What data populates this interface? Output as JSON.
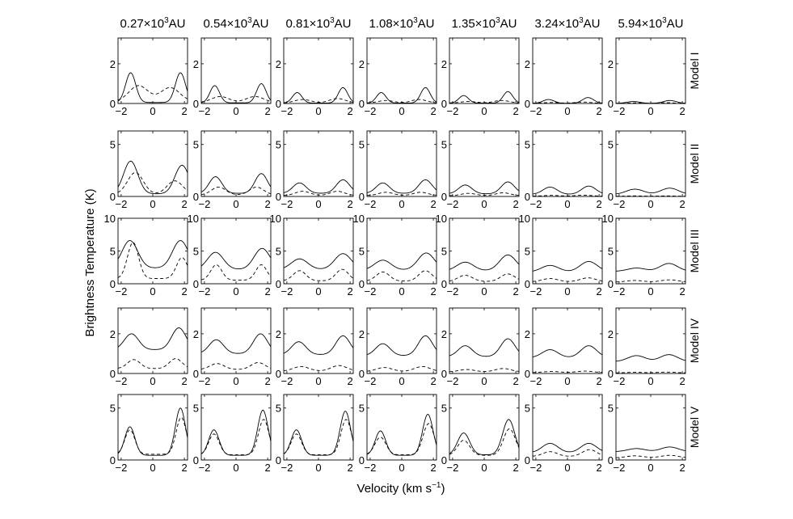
{
  "figure": {
    "ylabel": "Brightness Temperature (K)",
    "xlabel_main": "Velocity (km s",
    "xlabel_sup": "−1",
    "xlabel_close": ")",
    "line_color": "#000000"
  },
  "columns": [
    {
      "id": "c1",
      "base": "0.27×10",
      "exp": "3",
      "unit": "AU"
    },
    {
      "id": "c2",
      "base": "0.54×10",
      "exp": "3",
      "unit": "AU"
    },
    {
      "id": "c3",
      "base": "0.81×10",
      "exp": "3",
      "unit": "AU"
    },
    {
      "id": "c4",
      "base": "1.08×10",
      "exp": "3",
      "unit": "AU"
    },
    {
      "id": "c5",
      "base": "1.35×10",
      "exp": "3",
      "unit": "AU"
    },
    {
      "id": "c6",
      "base": "3.24×10",
      "exp": "3",
      "unit": "AU"
    },
    {
      "id": "c7",
      "base": "5.94×10",
      "exp": "3",
      "unit": "AU"
    }
  ],
  "rows": [
    {
      "model": "Model I",
      "ylim": [
        0,
        3.3
      ],
      "yticks": [
        0,
        2
      ]
    },
    {
      "model": "Model II",
      "ylim": [
        0,
        6.3
      ],
      "yticks": [
        0,
        5
      ]
    },
    {
      "model": "Model III",
      "ylim": [
        0,
        10
      ],
      "yticks": [
        0,
        5,
        10
      ]
    },
    {
      "model": "Model IV",
      "ylim": [
        0,
        3.3
      ],
      "yticks": [
        0,
        2
      ]
    },
    {
      "model": "Model V",
      "ylim": [
        0,
        6.3
      ],
      "yticks": [
        0,
        5
      ]
    }
  ],
  "chart_data": {
    "type": "line",
    "xlim": [
      -2.2,
      2.2
    ],
    "xticks": [
      -2,
      0,
      2
    ],
    "series_styles": [
      {
        "key": "solid",
        "dash": "none"
      },
      {
        "key": "dashed",
        "dash": "dashed"
      }
    ],
    "panels": [
      [
        {
          "solid": {
            "v1": -1.4,
            "p1": 1.55,
            "v2": 1.75,
            "p2": 1.55,
            "w": 0.32,
            "c": 0.05
          },
          "dashed": {
            "v1": -0.9,
            "p1": 0.9,
            "v2": 1.1,
            "p2": 0.8,
            "w": 0.6,
            "c": 0.1
          }
        },
        {
          "solid": {
            "v1": -1.35,
            "p1": 0.9,
            "v2": 1.6,
            "p2": 1.0,
            "w": 0.3,
            "c": 0.03
          },
          "dashed": {
            "v1": -1.0,
            "p1": 0.35,
            "v2": 1.2,
            "p2": 0.35,
            "w": 0.55,
            "c": 0.05
          }
        },
        {
          "solid": {
            "v1": -1.35,
            "p1": 0.55,
            "v2": 1.55,
            "p2": 0.8,
            "w": 0.3,
            "c": 0.02
          },
          "dashed": {
            "v1": -1.0,
            "p1": 0.2,
            "v2": 1.2,
            "p2": 0.25,
            "w": 0.5,
            "c": 0.03
          }
        },
        {
          "solid": {
            "v1": -1.3,
            "p1": 0.55,
            "v2": 1.5,
            "p2": 0.8,
            "w": 0.3,
            "c": 0.02
          },
          "dashed": {
            "v1": -1.0,
            "p1": 0.15,
            "v2": 1.1,
            "p2": 0.2,
            "w": 0.5,
            "c": 0.02
          }
        },
        {
          "solid": {
            "v1": -1.3,
            "p1": 0.4,
            "v2": 1.5,
            "p2": 0.6,
            "w": 0.3,
            "c": 0.02
          },
          "dashed": {
            "v1": -1.0,
            "p1": 0.1,
            "v2": 1.1,
            "p2": 0.15,
            "w": 0.5,
            "c": 0.02
          }
        },
        {
          "solid": {
            "v1": -1.2,
            "p1": 0.2,
            "v2": 1.3,
            "p2": 0.3,
            "w": 0.35,
            "c": 0.01
          },
          "dashed": {
            "v1": -1.0,
            "p1": 0.05,
            "v2": 1.0,
            "p2": 0.07,
            "w": 0.5,
            "c": 0.01
          }
        },
        {
          "solid": {
            "v1": -1.1,
            "p1": 0.1,
            "v2": 1.2,
            "p2": 0.15,
            "w": 0.4,
            "c": 0.01
          },
          "dashed": {
            "v1": -1.0,
            "p1": 0.03,
            "v2": 1.0,
            "p2": 0.04,
            "w": 0.5,
            "c": 0.0
          }
        }
      ],
      [
        {
          "solid": {
            "v1": -1.4,
            "p1": 3.4,
            "v2": 1.85,
            "p2": 3.0,
            "w": 0.45,
            "c": 0.25
          },
          "dashed": {
            "v1": -1.1,
            "p1": 2.3,
            "v2": 1.4,
            "p2": 1.5,
            "w": 0.5,
            "c": 0.2
          }
        },
        {
          "solid": {
            "v1": -1.3,
            "p1": 1.9,
            "v2": 1.6,
            "p2": 2.2,
            "w": 0.4,
            "c": 0.3
          },
          "dashed": {
            "v1": -1.1,
            "p1": 0.9,
            "v2": 1.3,
            "p2": 0.9,
            "w": 0.45,
            "c": 0.15
          }
        },
        {
          "solid": {
            "v1": -1.2,
            "p1": 1.3,
            "v2": 1.55,
            "p2": 1.6,
            "w": 0.42,
            "c": 0.3
          },
          "dashed": {
            "v1": -1.0,
            "p1": 0.5,
            "v2": 1.2,
            "p2": 0.5,
            "w": 0.45,
            "c": 0.1
          }
        },
        {
          "solid": {
            "v1": -1.2,
            "p1": 1.3,
            "v2": 1.5,
            "p2": 1.6,
            "w": 0.42,
            "c": 0.3
          },
          "dashed": {
            "v1": -1.0,
            "p1": 0.4,
            "v2": 1.2,
            "p2": 0.4,
            "w": 0.45,
            "c": 0.1
          }
        },
        {
          "solid": {
            "v1": -1.2,
            "p1": 1.1,
            "v2": 1.5,
            "p2": 1.4,
            "w": 0.42,
            "c": 0.25
          },
          "dashed": {
            "v1": -1.0,
            "p1": 0.3,
            "v2": 1.2,
            "p2": 0.35,
            "w": 0.45,
            "c": 0.08
          }
        },
        {
          "solid": {
            "v1": -1.1,
            "p1": 0.9,
            "v2": 1.35,
            "p2": 1.0,
            "w": 0.45,
            "c": 0.2
          },
          "dashed": {
            "v1": -1.0,
            "p1": 0.1,
            "v2": 1.0,
            "p2": 0.12,
            "w": 0.5,
            "c": 0.03
          }
        },
        {
          "solid": {
            "v1": -1.0,
            "p1": 0.7,
            "v2": 1.2,
            "p2": 0.8,
            "w": 0.55,
            "c": 0.2
          },
          "dashed": {
            "v1": -1.0,
            "p1": 0.05,
            "v2": 1.0,
            "p2": 0.05,
            "w": 0.5,
            "c": 0.02
          }
        }
      ],
      [
        {
          "solid": {
            "v1": -1.45,
            "p1": 6.6,
            "v2": 1.75,
            "p2": 6.6,
            "w": 0.5,
            "c": 2.4
          },
          "dashed": {
            "v1": -1.25,
            "p1": 6.3,
            "v2": 1.85,
            "p2": 4.0,
            "w": 0.35,
            "c": 0.8
          }
        },
        {
          "solid": {
            "v1": -1.3,
            "p1": 4.8,
            "v2": 1.65,
            "p2": 5.4,
            "w": 0.5,
            "c": 2.2
          },
          "dashed": {
            "v1": -1.25,
            "p1": 2.9,
            "v2": 1.6,
            "p2": 2.9,
            "w": 0.35,
            "c": 0.55
          }
        },
        {
          "solid": {
            "v1": -1.2,
            "p1": 3.8,
            "v2": 1.55,
            "p2": 4.6,
            "w": 0.52,
            "c": 2.2
          },
          "dashed": {
            "v1": -1.2,
            "p1": 2.0,
            "v2": 1.5,
            "p2": 2.2,
            "w": 0.4,
            "c": 0.45
          }
        },
        {
          "solid": {
            "v1": -1.2,
            "p1": 3.6,
            "v2": 1.55,
            "p2": 4.7,
            "w": 0.52,
            "c": 2.1
          },
          "dashed": {
            "v1": -1.2,
            "p1": 1.8,
            "v2": 1.5,
            "p2": 2.0,
            "w": 0.42,
            "c": 0.4
          }
        },
        {
          "solid": {
            "v1": -1.2,
            "p1": 3.3,
            "v2": 1.5,
            "p2": 4.4,
            "w": 0.52,
            "c": 2.0
          },
          "dashed": {
            "v1": -1.2,
            "p1": 1.3,
            "v2": 1.5,
            "p2": 1.5,
            "w": 0.45,
            "c": 0.35
          }
        },
        {
          "solid": {
            "v1": -1.1,
            "p1": 2.8,
            "v2": 1.35,
            "p2": 3.4,
            "w": 0.55,
            "c": 1.8
          },
          "dashed": {
            "v1": -1.1,
            "p1": 0.8,
            "v2": 1.3,
            "p2": 0.9,
            "w": 0.5,
            "c": 0.3
          }
        },
        {
          "solid": {
            "v1": -0.9,
            "p1": 2.4,
            "v2": 1.15,
            "p2": 3.1,
            "w": 0.55,
            "c": 1.9
          },
          "dashed": {
            "v1": -1.0,
            "p1": 0.5,
            "v2": 1.2,
            "p2": 0.6,
            "w": 0.55,
            "c": 0.25
          }
        }
      ],
      [
        {
          "solid": {
            "v1": -1.35,
            "p1": 2.0,
            "v2": 1.65,
            "p2": 2.3,
            "w": 0.45,
            "c": 1.2
          },
          "dashed": {
            "v1": -1.2,
            "p1": 0.7,
            "v2": 1.45,
            "p2": 0.75,
            "w": 0.4,
            "c": 0.25
          }
        },
        {
          "solid": {
            "v1": -1.25,
            "p1": 1.7,
            "v2": 1.55,
            "p2": 2.0,
            "w": 0.45,
            "c": 1.0
          },
          "dashed": {
            "v1": -1.2,
            "p1": 0.5,
            "v2": 1.4,
            "p2": 0.55,
            "w": 0.45,
            "c": 0.2
          }
        },
        {
          "solid": {
            "v1": -1.25,
            "p1": 1.6,
            "v2": 1.55,
            "p2": 1.9,
            "w": 0.45,
            "c": 0.95
          },
          "dashed": {
            "v1": -1.1,
            "p1": 0.35,
            "v2": 1.3,
            "p2": 0.4,
            "w": 0.5,
            "c": 0.12
          }
        },
        {
          "solid": {
            "v1": -1.2,
            "p1": 1.5,
            "v2": 1.5,
            "p2": 1.9,
            "w": 0.45,
            "c": 0.9
          },
          "dashed": {
            "v1": -1.1,
            "p1": 0.3,
            "v2": 1.3,
            "p2": 0.35,
            "w": 0.5,
            "c": 0.1
          }
        },
        {
          "solid": {
            "v1": -1.2,
            "p1": 1.4,
            "v2": 1.5,
            "p2": 1.75,
            "w": 0.45,
            "c": 0.85
          },
          "dashed": {
            "v1": -1.1,
            "p1": 0.2,
            "v2": 1.2,
            "p2": 0.25,
            "w": 0.5,
            "c": 0.08
          }
        },
        {
          "solid": {
            "v1": -1.1,
            "p1": 1.2,
            "v2": 1.35,
            "p2": 1.4,
            "w": 0.5,
            "c": 0.8
          },
          "dashed": {
            "v1": -1.0,
            "p1": 0.1,
            "v2": 1.1,
            "p2": 0.12,
            "w": 0.5,
            "c": 0.05
          }
        },
        {
          "solid": {
            "v1": -0.9,
            "p1": 0.9,
            "v2": 1.15,
            "p2": 0.95,
            "w": 0.55,
            "c": 0.6
          },
          "dashed": {
            "v1": -1.0,
            "p1": 0.06,
            "v2": 1.0,
            "p2": 0.07,
            "w": 0.55,
            "c": 0.03
          }
        }
      ],
      [
        {
          "solid": {
            "v1": -1.45,
            "p1": 3.2,
            "v2": 1.75,
            "p2": 5.0,
            "w": 0.32,
            "c": 0.45
          },
          "dashed": {
            "v1": -1.45,
            "p1": 2.9,
            "v2": 1.8,
            "p2": 4.1,
            "w": 0.32,
            "c": 0.55
          }
        },
        {
          "solid": {
            "v1": -1.4,
            "p1": 2.9,
            "v2": 1.7,
            "p2": 4.8,
            "w": 0.33,
            "c": 0.45
          },
          "dashed": {
            "v1": -1.4,
            "p1": 2.5,
            "v2": 1.75,
            "p2": 3.9,
            "w": 0.33,
            "c": 0.5
          }
        },
        {
          "solid": {
            "v1": -1.4,
            "p1": 2.9,
            "v2": 1.7,
            "p2": 4.7,
            "w": 0.33,
            "c": 0.45
          },
          "dashed": {
            "v1": -1.4,
            "p1": 2.5,
            "v2": 1.75,
            "p2": 3.9,
            "w": 0.33,
            "c": 0.5
          }
        },
        {
          "solid": {
            "v1": -1.35,
            "p1": 2.8,
            "v2": 1.65,
            "p2": 4.4,
            "w": 0.33,
            "c": 0.45
          },
          "dashed": {
            "v1": -1.35,
            "p1": 2.2,
            "v2": 1.7,
            "p2": 3.5,
            "w": 0.35,
            "c": 0.5
          }
        },
        {
          "solid": {
            "v1": -1.3,
            "p1": 2.6,
            "v2": 1.55,
            "p2": 3.9,
            "w": 0.38,
            "c": 0.5
          },
          "dashed": {
            "v1": -1.3,
            "p1": 1.9,
            "v2": 1.6,
            "p2": 3.0,
            "w": 0.38,
            "c": 0.45
          }
        },
        {
          "solid": {
            "v1": -1.1,
            "p1": 1.6,
            "v2": 1.35,
            "p2": 1.6,
            "w": 0.5,
            "c": 0.7
          },
          "dashed": {
            "v1": -1.1,
            "p1": 0.8,
            "v2": 1.4,
            "p2": 1.0,
            "w": 0.45,
            "c": 0.35
          }
        },
        {
          "solid": {
            "v1": -0.9,
            "p1": 1.1,
            "v2": 1.2,
            "p2": 1.25,
            "w": 0.55,
            "c": 0.8
          },
          "dashed": {
            "v1": -1.0,
            "p1": 0.4,
            "v2": 1.2,
            "p2": 0.45,
            "w": 0.55,
            "c": 0.2
          }
        }
      ]
    ]
  }
}
